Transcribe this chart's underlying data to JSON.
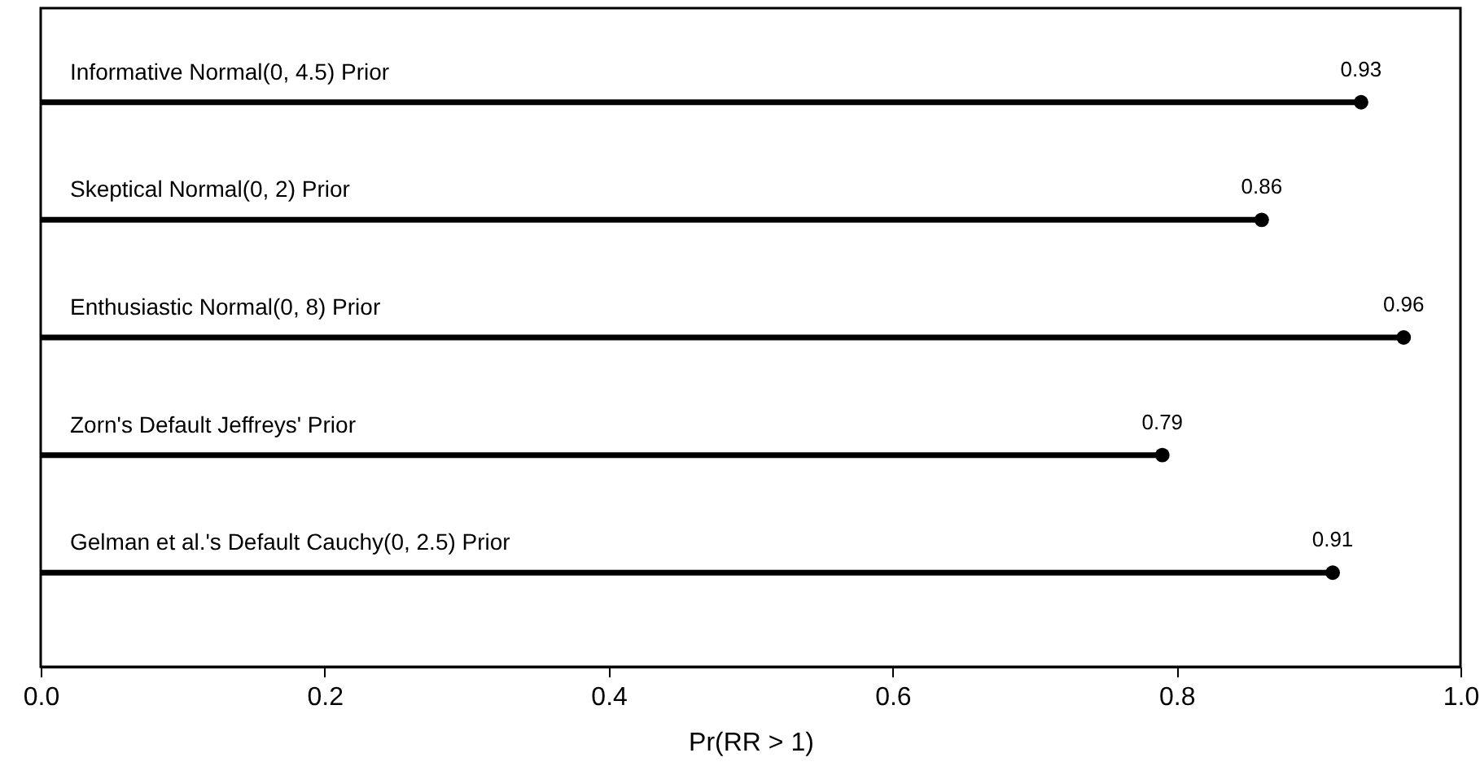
{
  "chart_data": {
    "type": "lollipop",
    "orientation": "horizontal",
    "xlabel": "Pr(RR > 1)",
    "categories": [
      "Informative Normal(0, 4.5) Prior",
      "Skeptical Normal(0, 2) Prior",
      "Enthusiastic Normal(0, 8) Prior",
      "Zorn's Default Jeffreys' Prior",
      "Gelman et al.'s Default Cauchy(0, 2.5) Prior"
    ],
    "values": [
      0.93,
      0.86,
      0.96,
      0.79,
      0.91
    ],
    "color": "#000000",
    "data_labels": true,
    "marker": "circle",
    "grid": false,
    "tick_labels": "x",
    "xlim": [
      0,
      1
    ],
    "xticks": [
      {
        "value": 0,
        "label": "0.0"
      },
      0.2,
      0.4,
      0.6,
      0.8,
      {
        "value": 1,
        "label": "1.0"
      }
    ]
  }
}
